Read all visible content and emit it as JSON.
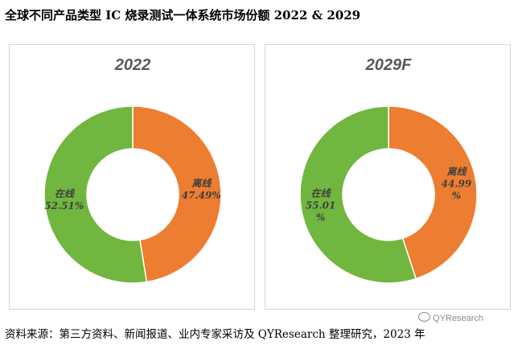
{
  "title": "全球不同产品类型 IC 烧录测试一体系统市场份额 2022 & 2029",
  "source": "资料来源：第三方资料、新闻报道、业内专家采访及 QYResearch 整理研究，2023 年",
  "watermark": "QYResearch",
  "colors": {
    "offline": "#ED7D31",
    "online": "#70B63F"
  },
  "chart_data": [
    {
      "type": "pie",
      "title": "2022",
      "slices": [
        {
          "name": "离线",
          "value": 47.49,
          "label_lines": [
            "离线",
            "47.49%"
          ],
          "color": "#ED7D31"
        },
        {
          "name": "在线",
          "value": 52.51,
          "label_lines": [
            "在线",
            "52.51%"
          ],
          "color": "#70B63F"
        }
      ]
    },
    {
      "type": "pie",
      "title": "2029F",
      "slices": [
        {
          "name": "离线",
          "value": 44.99,
          "label_lines": [
            "离线",
            "44.99",
            "%"
          ],
          "color": "#ED7D31"
        },
        {
          "name": "在线",
          "value": 55.01,
          "label_lines": [
            "在线",
            "55.01",
            "%"
          ],
          "color": "#70B63F"
        }
      ]
    }
  ]
}
